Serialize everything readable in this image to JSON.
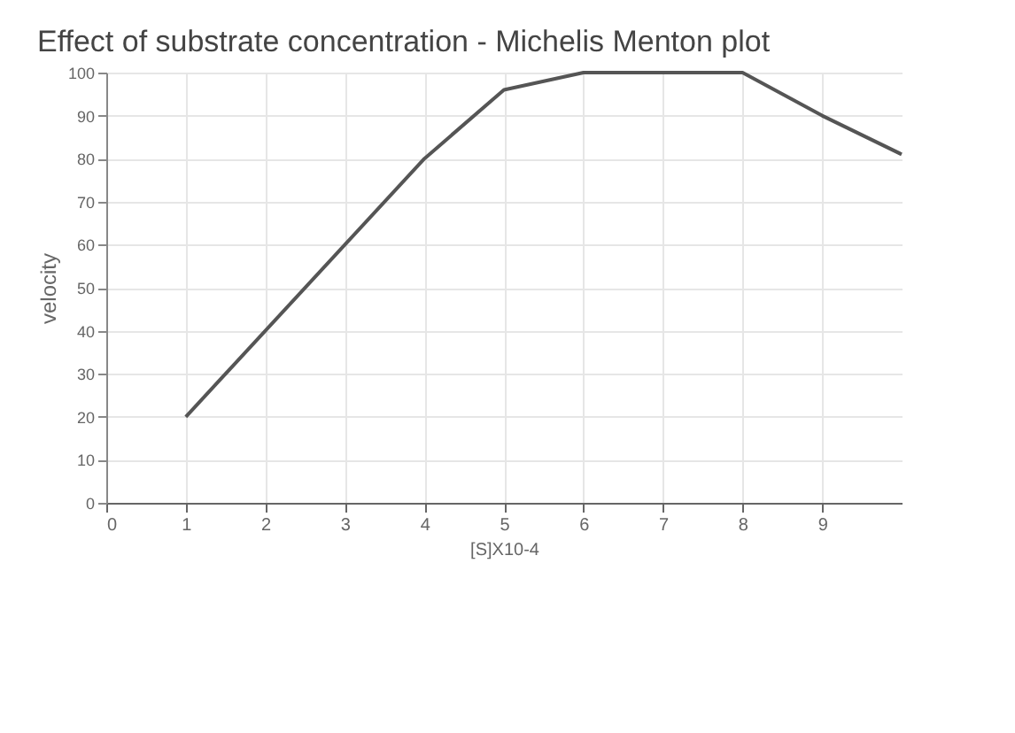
{
  "chart_data": {
    "type": "line",
    "title": "Effect of substrate concentration - Michelis Menton plot",
    "xlabel": "[S]X10-4",
    "ylabel": "velocity",
    "x": [
      1,
      2,
      3,
      4,
      5,
      6,
      7,
      8,
      9,
      10
    ],
    "series": [
      {
        "color": "#555555",
        "values": [
          20,
          40,
          60,
          80,
          96,
          100,
          100,
          100,
          90,
          81
        ]
      }
    ],
    "xlim": [
      0,
      10
    ],
    "xticks": [
      0,
      1,
      2,
      3,
      4,
      5,
      6,
      7,
      8,
      9
    ],
    "ylim": [
      0,
      100
    ],
    "yticks": [
      0,
      10,
      20,
      30,
      40,
      50,
      60,
      70,
      80,
      90,
      100
    ],
    "grid": true,
    "marker": "none",
    "line_style": "solid"
  }
}
